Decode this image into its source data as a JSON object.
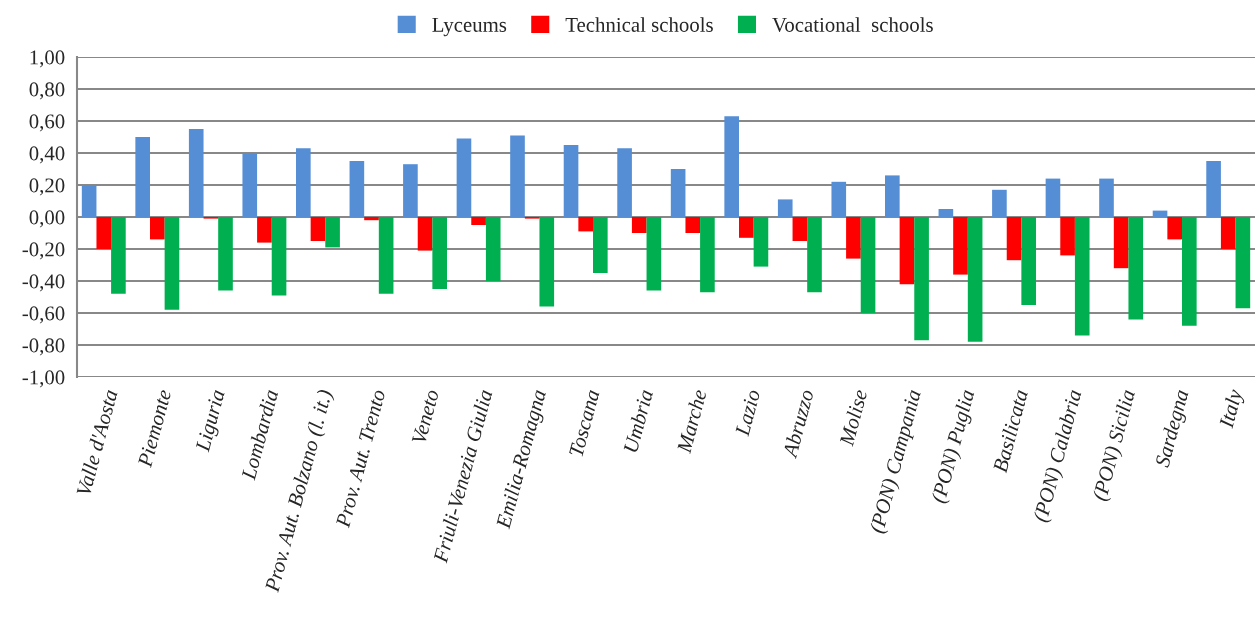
{
  "chart_data": {
    "type": "bar",
    "categories": [
      "Valle d'Aosta",
      "Piemonte",
      "Liguria",
      "Lombardia",
      "Prov. Aut. Bolzano (l. it.)",
      "Prov. Aut. Trento",
      "Veneto",
      "Friuli-Venezia Giulia",
      "Emilia-Romagna",
      "Toscana",
      "Umbria",
      "Marche",
      "Lazio",
      "Abruzzo",
      "Molise",
      "(PON) Campania",
      "(PON) Puglia",
      "Basilicata",
      "(PON) Calabria",
      "(PON) Sicilia",
      "Sardegna",
      "Italy"
    ],
    "series": [
      {
        "name": "Lyceums",
        "color": "#558ed5",
        "values": [
          0.2,
          0.5,
          0.55,
          0.4,
          0.43,
          0.35,
          0.33,
          0.49,
          0.51,
          0.45,
          0.43,
          0.3,
          0.63,
          0.11,
          0.22,
          0.26,
          0.05,
          0.17,
          0.24,
          0.24,
          0.04,
          0.35
        ]
      },
      {
        "name": "Technical schools",
        "color": "#ff0000",
        "values": [
          -0.2,
          -0.14,
          -0.01,
          -0.16,
          -0.15,
          -0.02,
          -0.21,
          -0.05,
          -0.01,
          -0.09,
          -0.1,
          -0.1,
          -0.13,
          -0.15,
          -0.26,
          -0.42,
          -0.36,
          -0.27,
          -0.24,
          -0.32,
          -0.14,
          -0.2
        ]
      },
      {
        "name": "Vocational  schools",
        "color": "#00b050",
        "values": [
          -0.48,
          -0.58,
          -0.46,
          -0.49,
          -0.19,
          -0.48,
          -0.45,
          -0.4,
          -0.56,
          -0.35,
          -0.46,
          -0.47,
          -0.31,
          -0.47,
          -0.6,
          -0.77,
          -0.78,
          -0.55,
          -0.74,
          -0.64,
          -0.68,
          -0.57
        ]
      }
    ],
    "ylim": [
      -1,
      1
    ],
    "yticks": [
      {
        "value": -1,
        "label": "-1,00"
      },
      {
        "value": -0.8,
        "label": "-0,80"
      },
      {
        "value": -0.6,
        "label": "-0,60"
      },
      {
        "value": -0.4,
        "label": "-0,40"
      },
      {
        "value": -0.2,
        "label": "-0,20"
      },
      {
        "value": 0,
        "label": "0,00"
      },
      {
        "value": 0.2,
        "label": "0,20"
      },
      {
        "value": 0.4,
        "label": "0,40"
      },
      {
        "value": 0.6,
        "label": "0,60"
      },
      {
        "value": 0.8,
        "label": "0,80"
      },
      {
        "value": 1,
        "label": "1,00"
      }
    ],
    "grid": "y",
    "legend": "top"
  }
}
